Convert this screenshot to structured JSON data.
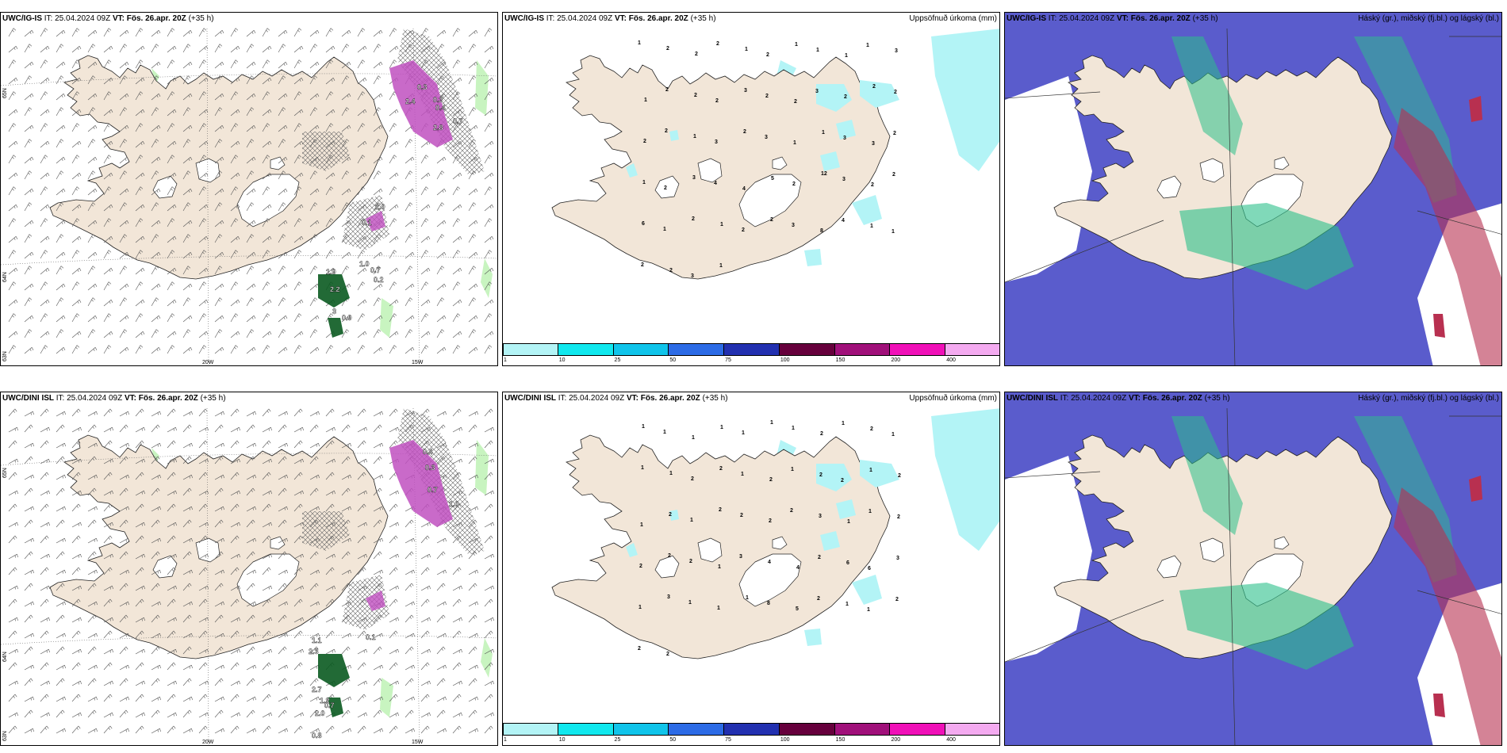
{
  "panels": [
    {
      "id": "p1",
      "model": "UWC/IG-IS",
      "it_label": "IT:",
      "it": "25.04.2024 09Z",
      "vt_label": "VT:",
      "vt": "Fös. 26.apr. 20Z",
      "lead": "(+35 h)",
      "right_title": "",
      "lat_labels": [
        "65N",
        "64N",
        "63N"
      ],
      "lon_labels": [
        "20W",
        "15W"
      ],
      "value_labels": [
        "0.3",
        "0.3",
        "0.4",
        "2.4",
        "0.7",
        "2.8",
        "1.0",
        "1.0",
        "0.7",
        "1.9",
        "2.2",
        "3",
        "0.9",
        "0.1",
        "0.2"
      ]
    },
    {
      "id": "p2",
      "model": "UWC/IG-IS",
      "it_label": "IT:",
      "it": "25.04.2024 09Z",
      "vt_label": "VT:",
      "vt": "Fös. 26.apr. 20Z",
      "lead": "(+35 h)",
      "right_title": "Uppsöfnuð úrkoma (mm)",
      "precip_labels": [
        "1",
        "2",
        "2",
        "2",
        "1",
        "2",
        "1",
        "1",
        "1",
        "1",
        "3",
        "1",
        "2",
        "2",
        "2",
        "3",
        "2",
        "2",
        "3",
        "2",
        "2",
        "2",
        "2",
        "2",
        "1",
        "3",
        "2",
        "3",
        "1",
        "1",
        "3",
        "3",
        "2",
        "1",
        "2",
        "3",
        "4",
        "4",
        "5",
        "2",
        "12",
        "3",
        "2",
        "2",
        "6",
        "1",
        "2",
        "1",
        "2",
        "2",
        "3",
        "8",
        "4",
        "1",
        "1",
        "2",
        "2",
        "3",
        "1"
      ]
    },
    {
      "id": "p3",
      "model": "UWC/IG-IS",
      "it_label": "IT:",
      "it": "25.04.2024 09Z",
      "vt_label": "VT:",
      "vt": "Fös. 26.apr. 20Z",
      "lead": "(+35 h)",
      "right_title": "Háský (gr.), miðský (fj.bl.) og lágský (bl.)"
    },
    {
      "id": "p4",
      "model": "UWC/DINI ISL",
      "it_label": "IT:",
      "it": "25.04.2024 09Z",
      "vt_label": "VT:",
      "vt": "Fös. 26.apr. 20Z",
      "lead": "(+35 h)",
      "right_title": "",
      "lat_labels": [
        "65N",
        "64N",
        "63N"
      ],
      "lon_labels": [
        "20W",
        "15W"
      ],
      "value_labels": [
        "0.4",
        "0.3",
        "0.7",
        "1.0",
        "0.1",
        "1.1",
        "2.3",
        "2.7",
        "1.2",
        "0.7",
        "2.0",
        "0.8"
      ]
    },
    {
      "id": "p5",
      "model": "UWC/DINI ISL",
      "it_label": "IT:",
      "it": "25.04.2024 09Z",
      "vt_label": "VT:",
      "vt": "Fös. 26.apr. 20Z",
      "lead": "(+35 h)",
      "right_title": "Uppsöfnuð úrkoma (mm)",
      "precip_labels": [
        "1",
        "1",
        "1",
        "1",
        "1",
        "1",
        "1",
        "2",
        "1",
        "2",
        "1",
        "1",
        "1",
        "2",
        "2",
        "1",
        "2",
        "1",
        "2",
        "2",
        "1",
        "2",
        "1",
        "2",
        "1",
        "2",
        "2",
        "2",
        "2",
        "3",
        "1",
        "1",
        "2",
        "2",
        "2",
        "2",
        "1",
        "3",
        "4",
        "4",
        "2",
        "6",
        "6",
        "3",
        "1",
        "3",
        "1",
        "1",
        "1",
        "8",
        "5",
        "2",
        "1",
        "1",
        "2",
        "2",
        "2"
      ]
    },
    {
      "id": "p6",
      "model": "UWC/DINI ISL",
      "it_label": "IT:",
      "it": "25.04.2024 09Z",
      "vt_label": "VT:",
      "vt": "Fös. 26.apr. 20Z",
      "lead": "(+35 h)",
      "right_title": "Háský (gr.), miðský (fj.bl.) og lágský (bl.)"
    }
  ],
  "colorbar": {
    "labels": [
      "1",
      "10",
      "25",
      "50",
      "75",
      "100",
      "150",
      "200",
      "400"
    ],
    "colors": [
      "#b3f4f6",
      "#11e8ee",
      "#10c4ea",
      "#2c6be6",
      "#2230b0",
      "#66003c",
      "#a0107a",
      "#f010b8",
      "#f4aaf0"
    ]
  },
  "colors": {
    "land": "#f2e6d8",
    "sea": "#ffffff",
    "precip_light": "#b3f4f6",
    "cloud_low": "#5a5ccc",
    "cloud_mid": "#2bc08a",
    "cloud_high": "#b83050",
    "precip_purple": "#c050c0",
    "precip_green": "#0a5a20"
  }
}
